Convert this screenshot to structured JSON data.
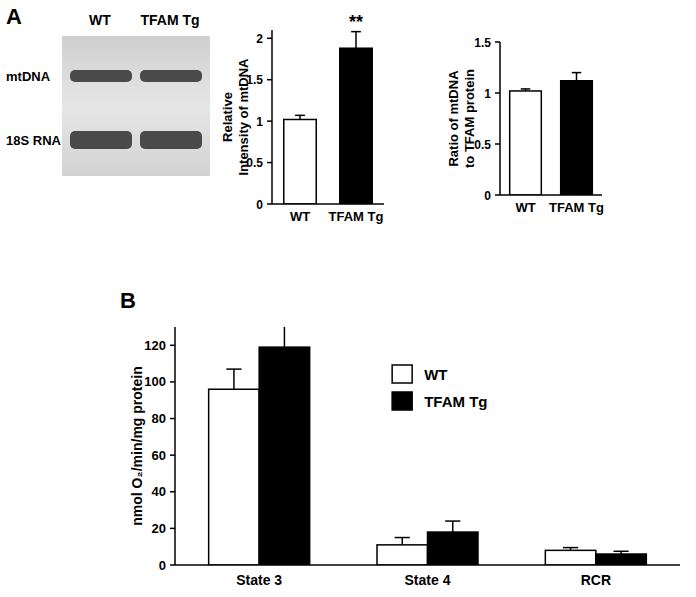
{
  "panels": [
    "A",
    "B"
  ],
  "blot": {
    "lanes": [
      "WT",
      "TFAM Tg"
    ],
    "bands": [
      "mtDNA",
      "18S RNA"
    ]
  },
  "chart_data": [
    {
      "type": "bar",
      "y_label": "Relative Intensity of mtDNA",
      "categories": [
        "WT",
        "TFAM Tg"
      ],
      "values": [
        1.02,
        1.88
      ],
      "errors": [
        0.05,
        0.2
      ],
      "colors": [
        "#ffffff",
        "#000000"
      ],
      "annotation": "**",
      "ylim": [
        0,
        2.1
      ],
      "yticks": [
        0,
        0.5,
        1,
        1.5,
        2
      ]
    },
    {
      "type": "bar",
      "y_label": "Ratio of mtDNA to TFAM protein",
      "categories": [
        "WT",
        "TFAM Tg"
      ],
      "values": [
        1.02,
        1.12
      ],
      "errors": [
        0.02,
        0.08
      ],
      "colors": [
        "#ffffff",
        "#000000"
      ],
      "ylim": [
        0,
        1.5
      ],
      "yticks": [
        0,
        0.5,
        1,
        1.5
      ]
    },
    {
      "type": "bar",
      "y_label": "nmol O₂/min/mg protein",
      "categories": [
        "State 3",
        "State 4",
        "RCR"
      ],
      "series": [
        {
          "name": "WT",
          "color": "#ffffff",
          "values": [
            96,
            11,
            8
          ],
          "errors": [
            11,
            4,
            1.5
          ]
        },
        {
          "name": "TFAM Tg",
          "color": "#000000",
          "values": [
            119,
            18,
            6
          ],
          "errors": [
            13,
            6,
            1.5
          ]
        }
      ],
      "legend": "upper right",
      "ylim": [
        0,
        130
      ],
      "yticks": [
        0,
        20,
        40,
        60,
        80,
        100,
        120
      ]
    }
  ]
}
